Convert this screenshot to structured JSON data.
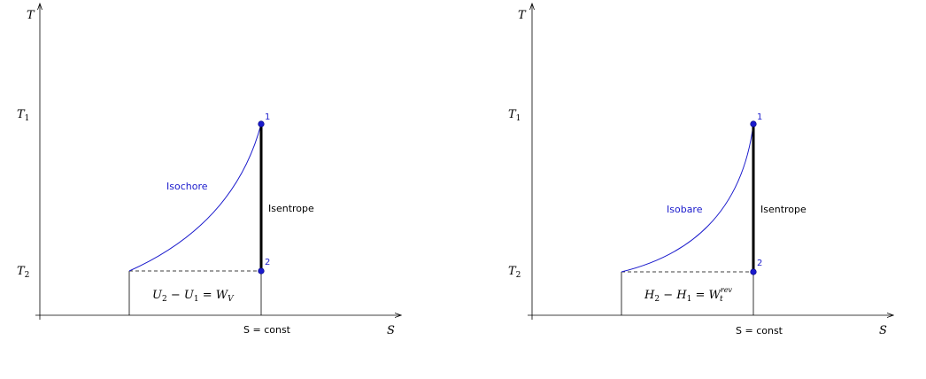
{
  "colors": {
    "process_curve": "#1a1acc",
    "point": "#1a1acc",
    "axis": "#000000"
  },
  "diagrams": [
    {
      "y_axis_label": "T",
      "x_axis_label": "S",
      "t1_label": "T",
      "t1_sub": "1",
      "t2_label": "T",
      "t2_sub": "2",
      "point1_label": "1",
      "point2_label": "2",
      "curve_label": "Isochore",
      "vertical_label": "Isentrope",
      "s_const_label": "S = const",
      "area_formula": {
        "a": "U",
        "a_sub": "2",
        "minus": " − ",
        "b": "U",
        "b_sub": "1",
        "equals": " = ",
        "c": "W",
        "c_sub": "V",
        "c_sup": ""
      }
    },
    {
      "y_axis_label": "T",
      "x_axis_label": "S",
      "t1_label": "T",
      "t1_sub": "1",
      "t2_label": "T",
      "t2_sub": "2",
      "point1_label": "1",
      "point2_label": "2",
      "curve_label": "Isobare",
      "vertical_label": "Isentrope",
      "s_const_label": "S = const",
      "area_formula": {
        "a": "H",
        "a_sub": "2",
        "minus": " − ",
        "b": "H",
        "b_sub": "1",
        "equals": " = ",
        "c": "W",
        "c_sub": "t",
        "c_sup": "rev"
      }
    }
  ]
}
